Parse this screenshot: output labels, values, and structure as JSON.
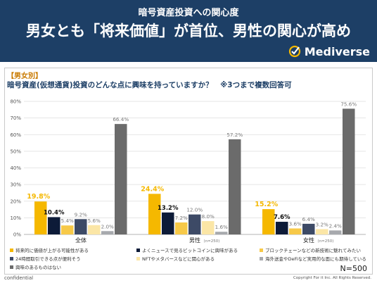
{
  "header": {
    "subtitle": "暗号資産投資への関心度",
    "title": "男女とも「将来価値」が首位、男性の関心が高め",
    "brand": "Mediverse"
  },
  "section_label": "【男女別】",
  "question": "暗号資産(仮想通貨)投資のどんな点に興味を持っていますか？　※3つまで複数回答可",
  "footer": {
    "sample": "N=500",
    "confidential": "confidential",
    "copyright": "Copyright For it Inc. All Rights Reserved."
  },
  "colors": {
    "header_bg": "#1d3f66",
    "highlight": "#f5b800"
  },
  "chart_data": {
    "type": "bar",
    "categories": [
      "全体",
      "男性",
      "女性"
    ],
    "category_notes": [
      "",
      "(n=250)",
      "(n=250)"
    ],
    "ylim": [
      0,
      80
    ],
    "yticks": [
      "0%",
      "10%",
      "20%",
      "30%",
      "40%",
      "50%",
      "60%",
      "70%",
      "80%"
    ],
    "grid": true,
    "legend_position": "bottom",
    "series": [
      {
        "name": "将来的に価値が上がる可能性がある",
        "color": "#f5b800",
        "values": [
          19.8,
          24.4,
          15.2
        ],
        "labels": [
          "19.8%",
          "24.4%",
          "15.2%"
        ]
      },
      {
        "name": "よくニュースで見るビットコインに興味がある",
        "color": "#0d1b38",
        "values": [
          10.4,
          13.2,
          7.6
        ],
        "labels": [
          "10.4%",
          "13.2%",
          "7.6%"
        ]
      },
      {
        "name": "ブロックチェーンなどの新技術に魅れてみたい",
        "color": "#f7c948",
        "values": [
          5.4,
          7.2,
          3.6
        ],
        "labels": [
          "5.4%",
          "7.2%",
          "3.6%"
        ]
      },
      {
        "name": "24時間取引できる点が便利そう",
        "color": "#3d4a66",
        "values": [
          9.2,
          12.0,
          6.4
        ],
        "labels": [
          "9.2%",
          "12.0%",
          "6.4%"
        ]
      },
      {
        "name": "NFTやメタバースなどに関心がある",
        "color": "#fbe6a6",
        "values": [
          5.6,
          8.0,
          3.2
        ],
        "labels": [
          "5.6%",
          "8.0%",
          "3.2%"
        ]
      },
      {
        "name": "海外送金やDeFiなど実用的な面にも期待している",
        "color": "#a7a9ad",
        "values": [
          2.0,
          1.6,
          2.4
        ],
        "labels": [
          "2.0%",
          "1.6%",
          "2.4%"
        ]
      },
      {
        "name": "興味のあるものはない",
        "color": "#6b6b6b",
        "values": [
          66.4,
          57.2,
          75.6
        ],
        "labels": [
          "66.4%",
          "57.2%",
          "75.6%"
        ]
      }
    ]
  }
}
